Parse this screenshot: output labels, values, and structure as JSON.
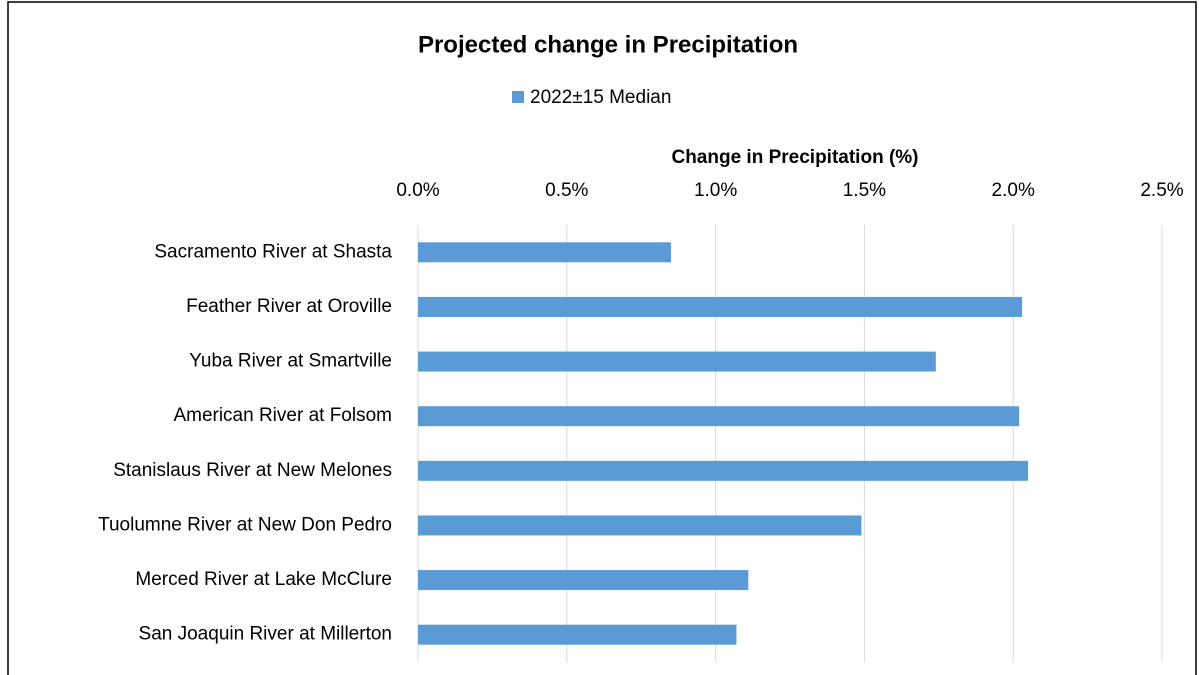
{
  "chart_data": {
    "type": "bar",
    "orientation": "horizontal",
    "title": "Projected change in Precipitation",
    "x_label": "Change in Precipitation (%)",
    "categories": [
      "Sacramento River at Shasta",
      "Feather River at Oroville",
      "Yuba River at Smartville",
      "American River at Folsom",
      "Stanislaus River at New Melones",
      "Tuolumne River at New Don Pedro",
      "Merced River at Lake McClure",
      "San Joaquin River at Millerton"
    ],
    "series": [
      {
        "name": "2022±15 Median",
        "color": "#5b9bd5",
        "values": [
          0.85,
          2.03,
          1.74,
          2.02,
          2.05,
          1.49,
          1.11,
          1.07
        ]
      }
    ],
    "xlim": [
      0,
      2.5
    ],
    "xticks": [
      {
        "value": 0,
        "label": "0.0%"
      },
      {
        "value": 0.5,
        "label": "0.5%"
      },
      {
        "value": 1,
        "label": "1.0%"
      },
      {
        "value": 1.5,
        "label": "1.5%"
      },
      {
        "value": 2,
        "label": "2.0%"
      },
      {
        "value": 2.5,
        "label": "2.5%"
      }
    ],
    "grid": true,
    "legend": "top"
  }
}
